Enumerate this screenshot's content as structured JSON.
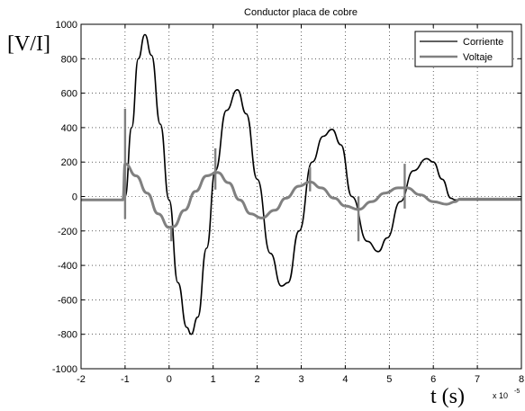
{
  "chart_data": {
    "type": "line",
    "title": "Conductor placa de cobre",
    "ylabel": "[V/I]",
    "xlabel": "t (s)",
    "x_exponent_label": "x 10",
    "x_exponent_power": "-5",
    "xlim": [
      -2,
      8
    ],
    "ylim": [
      -1000,
      1000
    ],
    "x_ticks": [
      -2,
      -1,
      0,
      1,
      2,
      3,
      4,
      5,
      6,
      7,
      8
    ],
    "y_ticks": [
      -1000,
      -800,
      -600,
      -400,
      -200,
      0,
      200,
      400,
      600,
      800,
      1000
    ],
    "grid": true,
    "legend_position": "top-right",
    "series": [
      {
        "name": "Corriente",
        "color": "#000000",
        "points": [
          [
            -2.0,
            -20
          ],
          [
            -1.1,
            -20
          ],
          [
            -1.0,
            0
          ],
          [
            -0.85,
            400
          ],
          [
            -0.7,
            800
          ],
          [
            -0.55,
            940
          ],
          [
            -0.4,
            820
          ],
          [
            -0.2,
            420
          ],
          [
            0.0,
            -20
          ],
          [
            0.2,
            -500
          ],
          [
            0.4,
            -760
          ],
          [
            0.5,
            -800
          ],
          [
            0.65,
            -700
          ],
          [
            0.85,
            -300
          ],
          [
            1.05,
            150
          ],
          [
            1.3,
            500
          ],
          [
            1.55,
            620
          ],
          [
            1.75,
            480
          ],
          [
            2.0,
            100
          ],
          [
            2.3,
            -330
          ],
          [
            2.55,
            -520
          ],
          [
            2.7,
            -500
          ],
          [
            2.95,
            -200
          ],
          [
            3.25,
            200
          ],
          [
            3.5,
            350
          ],
          [
            3.7,
            390
          ],
          [
            3.9,
            300
          ],
          [
            4.15,
            0
          ],
          [
            4.5,
            -260
          ],
          [
            4.75,
            -320
          ],
          [
            4.95,
            -240
          ],
          [
            5.25,
            -30
          ],
          [
            5.55,
            150
          ],
          [
            5.85,
            220
          ],
          [
            6.0,
            200
          ],
          [
            6.2,
            100
          ],
          [
            6.4,
            -10
          ],
          [
            6.5,
            -20
          ],
          [
            8.0,
            -20
          ]
        ]
      },
      {
        "name": "Voltaje",
        "color": "#808080",
        "points": [
          [
            -2.0,
            -20
          ],
          [
            -1.05,
            -20
          ],
          [
            -1.0,
            190
          ],
          [
            -0.75,
            120
          ],
          [
            -0.5,
            20
          ],
          [
            -0.25,
            -100
          ],
          [
            0.0,
            -180
          ],
          [
            0.1,
            -175
          ],
          [
            0.35,
            -80
          ],
          [
            0.6,
            30
          ],
          [
            0.85,
            120
          ],
          [
            1.1,
            140
          ],
          [
            1.35,
            80
          ],
          [
            1.6,
            -20
          ],
          [
            1.85,
            -100
          ],
          [
            2.1,
            -125
          ],
          [
            2.4,
            -80
          ],
          [
            2.65,
            -10
          ],
          [
            2.95,
            60
          ],
          [
            3.2,
            85
          ],
          [
            3.45,
            50
          ],
          [
            3.75,
            -10
          ],
          [
            4.0,
            -55
          ],
          [
            4.3,
            -75
          ],
          [
            4.6,
            -30
          ],
          [
            4.9,
            20
          ],
          [
            5.2,
            50
          ],
          [
            5.4,
            50
          ],
          [
            5.7,
            10
          ],
          [
            6.0,
            -30
          ],
          [
            6.3,
            -45
          ],
          [
            6.5,
            -30
          ],
          [
            6.6,
            -15
          ],
          [
            8.0,
            -15
          ]
        ],
        "spikes": [
          {
            "x": -1.0,
            "low": -130,
            "high": 510
          },
          {
            "x": 0.05,
            "low": -260,
            "high": -170
          },
          {
            "x": 1.05,
            "low": 40,
            "high": 280
          },
          {
            "x": 3.2,
            "low": 30,
            "high": 170
          },
          {
            "x": 4.3,
            "low": -260,
            "high": 0
          },
          {
            "x": 5.35,
            "low": -70,
            "high": 190
          }
        ]
      }
    ]
  }
}
